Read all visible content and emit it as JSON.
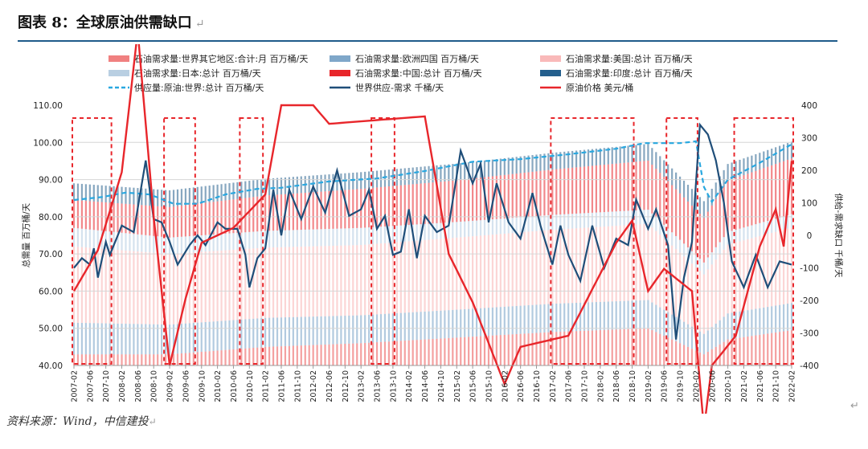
{
  "figure": {
    "title": "图表 8：全球原油供需缺口",
    "source": "资料来源：Wind，中信建投",
    "return_mark": "↵"
  },
  "chart_data": {
    "type": "bar",
    "title": "图表 8：全球原油供需缺口",
    "ylabel_left": "总需量 百万桶/天",
    "ylabel_right": "供给-需求缺口 千桶/天",
    "ylim_left": [
      40,
      110
    ],
    "ylim_right": [
      -400,
      400
    ],
    "yticks_left": [
      "110.00",
      "100.00",
      "90.00",
      "80.00",
      "70.00",
      "60.00",
      "50.00",
      "40.00"
    ],
    "yticks_right": [
      "400",
      "300",
      "200",
      "100",
      "0",
      "-100",
      "-200",
      "-300",
      "-400"
    ],
    "x_tick_labels": [
      "2007-02",
      "2007-06",
      "2007-10",
      "2008-02",
      "2008-06",
      "2008-10",
      "2009-02",
      "2009-06",
      "2009-10",
      "2010-02",
      "2010-06",
      "2010-10",
      "2011-02",
      "2011-06",
      "2011-10",
      "2012-02",
      "2012-06",
      "2012-10",
      "2013-02",
      "2013-06",
      "2013-10",
      "2014-02",
      "2014-06",
      "2014-10",
      "2015-02",
      "2015-06",
      "2015-10",
      "2016-02",
      "2016-06",
      "2016-10",
      "2017-02",
      "2017-06",
      "2017-10",
      "2018-02",
      "2018-06",
      "2018-10",
      "2019-02",
      "2019-06",
      "2019-10",
      "2020-02",
      "2020-06",
      "2020-10",
      "2021-02",
      "2021-06",
      "2021-10",
      "2022-02"
    ],
    "legend": [
      {
        "label": "石油需求量:世界其它地区:合计:月 百万桶/天",
        "kind": "bar",
        "color": "#f08080"
      },
      {
        "label": "石油需求量:欧洲四国 百万桶/天",
        "kind": "bar",
        "color": "#7fa7c9"
      },
      {
        "label": "石油需求量:美国:总计 百万桶/天",
        "kind": "bar",
        "color": "#f9b9b9"
      },
      {
        "label": "石油需求量:日本:总计 百万桶/天",
        "kind": "bar",
        "color": "#b9cfe2"
      },
      {
        "label": "石油需求量:中国:总计 百万桶/天",
        "kind": "bar",
        "color": "#e8262b"
      },
      {
        "label": "石油需求量:印度:总计 百万桶/天",
        "kind": "bar",
        "color": "#245f8d"
      },
      {
        "label": "供应量:原油:世界:总计 百万桶/天",
        "kind": "dash",
        "color": "#29a8e0"
      },
      {
        "label": "世界供应-需求 千桶/天",
        "kind": "line",
        "color": "#1f4e79"
      },
      {
        "label": "原油价格 美元/桶",
        "kind": "line",
        "color": "#e8262b"
      }
    ],
    "shortage_periods": [
      {
        "start": "2007-02",
        "end": "2007-11"
      },
      {
        "start": "2009-01",
        "end": "2009-08"
      },
      {
        "start": "2010-08",
        "end": "2011-01"
      },
      {
        "start": "2013-05",
        "end": "2013-10"
      },
      {
        "start": "2017-02",
        "end": "2018-10"
      },
      {
        "start": "2019-07",
        "end": "2020-02"
      },
      {
        "start": "2020-12",
        "end": "2022-02"
      }
    ],
    "world_supply": {
      "name": "供应量:原油:世界:总计 百万桶/天",
      "anchors": [
        [
          "2007-02",
          84.5
        ],
        [
          "2007-09",
          85.3
        ],
        [
          "2008-03",
          86.5
        ],
        [
          "2008-09",
          86.0
        ],
        [
          "2009-03",
          83.5
        ],
        [
          "2009-09",
          83.5
        ],
        [
          "2010-04",
          86.0
        ],
        [
          "2010-12",
          87.5
        ],
        [
          "2011-06",
          87.8
        ],
        [
          "2012-06",
          89.5
        ],
        [
          "2013-06",
          90.3
        ],
        [
          "2014-06",
          92.3
        ],
        [
          "2015-06",
          94.8
        ],
        [
          "2016-06",
          95.5
        ],
        [
          "2017-06",
          96.8
        ],
        [
          "2018-06",
          98.3
        ],
        [
          "2019-01",
          99.8
        ],
        [
          "2019-10",
          99.8
        ],
        [
          "2020-02",
          100.3
        ],
        [
          "2020-04",
          88.0
        ],
        [
          "2020-06",
          84.0
        ],
        [
          "2020-10",
          90.0
        ],
        [
          "2021-06",
          94.5
        ],
        [
          "2022-02",
          99.5
        ]
      ]
    },
    "demand_stack": {
      "unit": "百万桶/天",
      "anchors": [
        {
          "date": "2007-02",
          "rest": 43,
          "europe": 8.5,
          "usa": 20.5,
          "japan": 5.0,
          "china": 7.5
        },
        {
          "date": "2009-02",
          "rest": 43,
          "europe": 8.0,
          "usa": 19.0,
          "japan": 4.4,
          "china": 8.2
        },
        {
          "date": "2011-02",
          "rest": 45,
          "europe": 7.8,
          "usa": 18.9,
          "japan": 4.5,
          "china": 9.5
        },
        {
          "date": "2013-02",
          "rest": 46,
          "europe": 7.5,
          "usa": 18.9,
          "japan": 4.6,
          "china": 10.5
        },
        {
          "date": "2015-02",
          "rest": 47.5,
          "europe": 7.5,
          "usa": 19.4,
          "japan": 4.2,
          "china": 11.2
        },
        {
          "date": "2017-02",
          "rest": 49,
          "europe": 7.6,
          "usa": 19.9,
          "japan": 4.0,
          "china": 12.2
        },
        {
          "date": "2019-02",
          "rest": 50,
          "europe": 7.6,
          "usa": 20.5,
          "japan": 3.8,
          "china": 13.2
        },
        {
          "date": "2020-04",
          "rest": 43,
          "europe": 5.5,
          "usa": 16.0,
          "japan": 3.2,
          "china": 12.0
        },
        {
          "date": "2020-10",
          "rest": 47,
          "europe": 7.0,
          "usa": 18.5,
          "japan": 3.4,
          "china": 13.8
        },
        {
          "date": "2022-02",
          "rest": 49.5,
          "europe": 7.3,
          "usa": 20.3,
          "japan": 3.6,
          "china": 15.0
        }
      ]
    },
    "supply_minus_demand": {
      "name": "世界供应-需求 千桶/天",
      "unit": "千桶/天",
      "anchors": [
        [
          "2007-02",
          -100
        ],
        [
          "2007-04",
          -70
        ],
        [
          "2007-06",
          -90
        ],
        [
          "2007-07",
          -40
        ],
        [
          "2007-08",
          -130
        ],
        [
          "2007-10",
          -20
        ],
        [
          "2007-11",
          -60
        ],
        [
          "2008-02",
          30
        ],
        [
          "2008-05",
          10
        ],
        [
          "2008-08",
          230
        ],
        [
          "2008-10",
          50
        ],
        [
          "2008-12",
          40
        ],
        [
          "2009-02",
          -20
        ],
        [
          "2009-04",
          -90
        ],
        [
          "2009-07",
          -30
        ],
        [
          "2009-09",
          0
        ],
        [
          "2009-11",
          -30
        ],
        [
          "2010-02",
          40
        ],
        [
          "2010-04",
          20
        ],
        [
          "2010-07",
          20
        ],
        [
          "2010-09",
          -60
        ],
        [
          "2010-10",
          -160
        ],
        [
          "2010-12",
          -70
        ],
        [
          "2011-02",
          -40
        ],
        [
          "2011-04",
          140
        ],
        [
          "2011-06",
          0
        ],
        [
          "2011-08",
          140
        ],
        [
          "2011-11",
          50
        ],
        [
          "2012-02",
          150
        ],
        [
          "2012-05",
          70
        ],
        [
          "2012-08",
          200
        ],
        [
          "2012-11",
          60
        ],
        [
          "2013-02",
          80
        ],
        [
          "2013-04",
          140
        ],
        [
          "2013-06",
          20
        ],
        [
          "2013-08",
          60
        ],
        [
          "2013-10",
          -60
        ],
        [
          "2013-12",
          -50
        ],
        [
          "2014-02",
          80
        ],
        [
          "2014-04",
          -70
        ],
        [
          "2014-06",
          60
        ],
        [
          "2014-09",
          10
        ],
        [
          "2014-12",
          30
        ],
        [
          "2015-03",
          260
        ],
        [
          "2015-06",
          160
        ],
        [
          "2015-08",
          220
        ],
        [
          "2015-10",
          40
        ],
        [
          "2015-12",
          160
        ],
        [
          "2016-03",
          40
        ],
        [
          "2016-06",
          -10
        ],
        [
          "2016-09",
          130
        ],
        [
          "2016-11",
          30
        ],
        [
          "2017-02",
          -90
        ],
        [
          "2017-04",
          30
        ],
        [
          "2017-06",
          -60
        ],
        [
          "2017-09",
          -140
        ],
        [
          "2017-12",
          30
        ],
        [
          "2018-03",
          -100
        ],
        [
          "2018-06",
          -10
        ],
        [
          "2018-09",
          -30
        ],
        [
          "2018-11",
          110
        ],
        [
          "2019-02",
          20
        ],
        [
          "2019-04",
          80
        ],
        [
          "2019-07",
          -30
        ],
        [
          "2019-09",
          -320
        ],
        [
          "2019-11",
          -130
        ],
        [
          "2020-01",
          -20
        ],
        [
          "2020-03",
          340
        ],
        [
          "2020-05",
          310
        ],
        [
          "2020-07",
          230
        ],
        [
          "2020-09",
          100
        ],
        [
          "2020-11",
          -80
        ],
        [
          "2021-02",
          -160
        ],
        [
          "2021-05",
          -60
        ],
        [
          "2021-08",
          -160
        ],
        [
          "2021-11",
          -80
        ],
        [
          "2022-02",
          -90
        ]
      ]
    },
    "oil_price": {
      "name": "原油价格 美元/桶",
      "unit": "美元/桶",
      "anchors": [
        [
          "2007-02",
          60
        ],
        [
          "2007-08",
          71
        ],
        [
          "2008-02",
          92
        ],
        [
          "2008-06",
          130
        ],
        [
          "2008-10",
          80
        ],
        [
          "2009-02",
          40
        ],
        [
          "2009-06",
          58
        ],
        [
          "2009-10",
          73
        ],
        [
          "2010-06",
          77
        ],
        [
          "2011-02",
          86
        ],
        [
          "2011-06",
          110
        ],
        [
          "2012-02",
          110
        ],
        [
          "2012-06",
          105
        ],
        [
          "2013-06",
          106
        ],
        [
          "2014-06",
          107
        ],
        [
          "2014-12",
          70
        ],
        [
          "2015-06",
          57
        ],
        [
          "2016-02",
          35
        ],
        [
          "2016-06",
          45
        ],
        [
          "2017-06",
          48
        ],
        [
          "2018-06",
          73
        ],
        [
          "2018-10",
          79
        ],
        [
          "2019-02",
          60
        ],
        [
          "2019-06",
          66
        ],
        [
          "2020-01",
          60
        ],
        [
          "2020-04",
          23
        ],
        [
          "2020-06",
          40
        ],
        [
          "2020-12",
          48
        ],
        [
          "2021-06",
          72
        ],
        [
          "2021-10",
          82
        ],
        [
          "2021-12",
          72
        ],
        [
          "2022-02",
          95
        ]
      ]
    }
  }
}
